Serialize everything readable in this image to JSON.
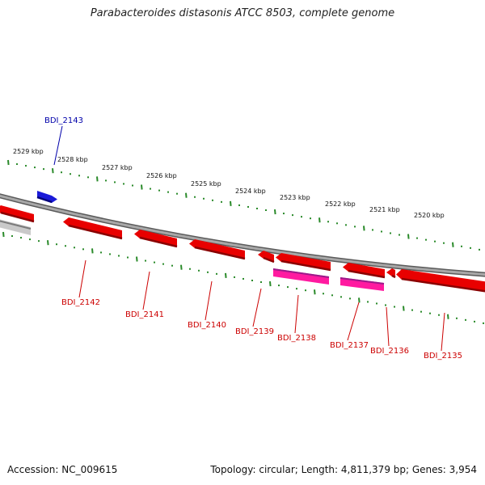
{
  "title": "Parabacteroides distasonis ATCC 8503, complete genome",
  "accession_text": "Accession: NC_009615",
  "summary_text": "Topology: circular; Length: 4,811,379 bp; Genes: 3,954",
  "colors": {
    "forward_gene": "#1a1ad8",
    "reverse_gene": "#e80000",
    "pseudo_reverse": "#ff1aa0",
    "backbone": "#888888",
    "tick": "#2a8a2a",
    "forward_label": "#0000aa",
    "reverse_label": "#cc0000"
  },
  "kbp_labels": [
    "2529 kbp",
    "2528 kbp",
    "2527 kbp",
    "2526 kbp",
    "2525 kbp",
    "2524 kbp",
    "2523 kbp",
    "2522 kbp",
    "2521 kbp",
    "2520 kbp"
  ],
  "genes": [
    {
      "id": "BDI_2143",
      "strand": "forward"
    },
    {
      "id": "BDI_2142",
      "strand": "reverse"
    },
    {
      "id": "BDI_2141",
      "strand": "reverse"
    },
    {
      "id": "BDI_2140",
      "strand": "reverse"
    },
    {
      "id": "BDI_2139",
      "strand": "reverse"
    },
    {
      "id": "BDI_2138",
      "strand": "reverse"
    },
    {
      "id": "BDI_2137",
      "strand": "reverse"
    },
    {
      "id": "BDI_2136",
      "strand": "reverse"
    },
    {
      "id": "BDI_2135",
      "strand": "reverse"
    }
  ]
}
